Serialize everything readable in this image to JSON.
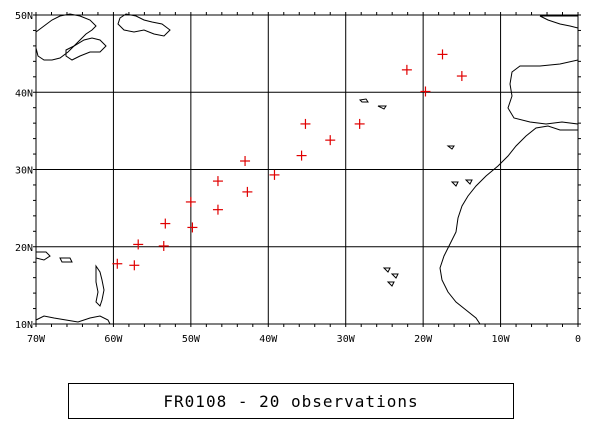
{
  "map": {
    "lon_ticks": [
      {
        "lon": -70,
        "label": "70W"
      },
      {
        "lon": -60,
        "label": "60W"
      },
      {
        "lon": -50,
        "label": "50W"
      },
      {
        "lon": -40,
        "label": "40W"
      },
      {
        "lon": -30,
        "label": "30W"
      },
      {
        "lon": -20,
        "label": "20W"
      },
      {
        "lon": -10,
        "label": "10W"
      },
      {
        "lon": 0,
        "label": "0"
      }
    ],
    "lat_ticks": [
      {
        "lat": 10,
        "label": "10N"
      },
      {
        "lat": 20,
        "label": "20N"
      },
      {
        "lat": 30,
        "label": "30N"
      },
      {
        "lat": 40,
        "label": "40N"
      },
      {
        "lat": 50,
        "label": "50N"
      }
    ],
    "lon_range": [
      -70,
      0
    ],
    "lat_range": [
      10,
      50
    ],
    "marker_color": "#e00000",
    "observations": [
      {
        "lon": -59.5,
        "lat": 17.8
      },
      {
        "lon": -57.3,
        "lat": 17.6
      },
      {
        "lon": -56.8,
        "lat": 20.3
      },
      {
        "lon": -53.5,
        "lat": 20.1
      },
      {
        "lon": -53.3,
        "lat": 23.0
      },
      {
        "lon": -49.8,
        "lat": 22.5
      },
      {
        "lon": -50.0,
        "lat": 25.8
      },
      {
        "lon": -46.5,
        "lat": 24.8
      },
      {
        "lon": -46.5,
        "lat": 28.5
      },
      {
        "lon": -42.7,
        "lat": 27.1
      },
      {
        "lon": -43.0,
        "lat": 31.1
      },
      {
        "lon": -39.2,
        "lat": 29.3
      },
      {
        "lon": -35.7,
        "lat": 31.8
      },
      {
        "lon": -35.2,
        "lat": 35.9
      },
      {
        "lon": -32.0,
        "lat": 33.8
      },
      {
        "lon": -28.2,
        "lat": 35.9
      },
      {
        "lon": -22.1,
        "lat": 42.9
      },
      {
        "lon": -19.7,
        "lat": 40.1
      },
      {
        "lon": -17.5,
        "lat": 44.9
      },
      {
        "lon": -15.0,
        "lat": 42.1
      }
    ]
  },
  "caption": "FR0108 - 20 observations"
}
